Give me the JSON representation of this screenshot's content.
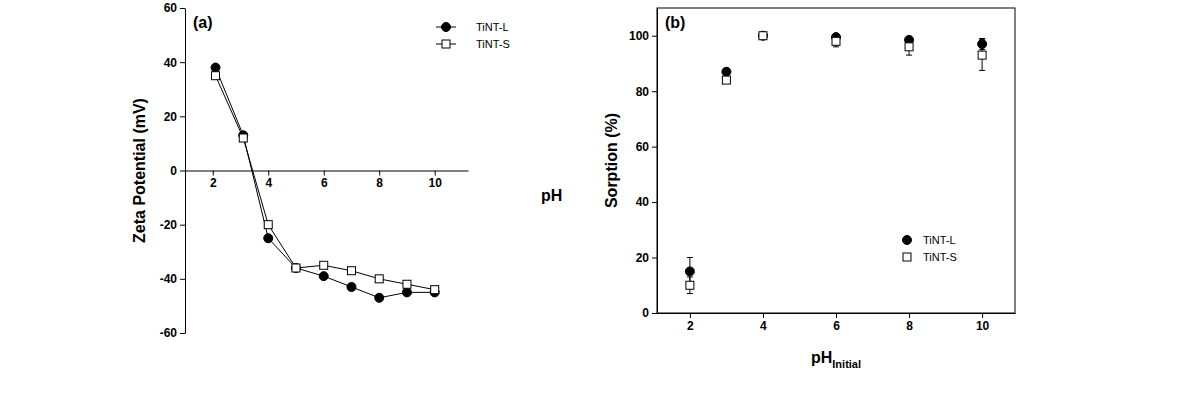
{
  "chart_data": [
    {
      "type": "line",
      "panel_label": "(a)",
      "ylabel": "Zeta Potential (mV)",
      "xlabel": "pH",
      "x": [
        2.1,
        3.1,
        4,
        5,
        6,
        7,
        8,
        9,
        10
      ],
      "xlim": [
        1,
        11.2
      ],
      "xticks": [
        2,
        4,
        6,
        8,
        10
      ],
      "ylim": [
        -60,
        60
      ],
      "yticks": [
        -60,
        -40,
        -20,
        0,
        20,
        40,
        60
      ],
      "grid": false,
      "legend": "upper right",
      "series": [
        {
          "name": "TiNT-L",
          "color": "#000000",
          "marker": "circle",
          "line_style": "solid",
          "values": [
            38,
            13,
            -25,
            -36,
            -39,
            -43,
            -47,
            -45,
            -45
          ]
        },
        {
          "name": "TiNT-S",
          "color": "#000000",
          "marker": "square-open",
          "line_style": "solid",
          "values": [
            35,
            12,
            -20,
            -36,
            -35,
            -37,
            -40,
            -42,
            -44
          ]
        }
      ]
    },
    {
      "type": "scatter",
      "panel_label": "(b)",
      "ylabel": "Sorption (%)",
      "xlabel": "pH",
      "xlabel_subscript": "Initial",
      "x": [
        2,
        3,
        4,
        6,
        8,
        10
      ],
      "xlim": [
        1.1,
        10.9
      ],
      "xticks": [
        2,
        4,
        6,
        8,
        10
      ],
      "ylim": [
        0,
        110
      ],
      "yticks": [
        0,
        20,
        40,
        60,
        80,
        100
      ],
      "grid": false,
      "legend": "lower right",
      "series": [
        {
          "name": "TiNT-L",
          "color": "#000000",
          "marker": "circle",
          "values": [
            15,
            87,
            100,
            99.5,
            98.5,
            97
          ],
          "errors": [
            5,
            1,
            0.8,
            1,
            1,
            2
          ]
        },
        {
          "name": "TiNT-S",
          "color": "#000000",
          "marker": "square-open",
          "values": [
            10,
            84,
            100,
            98,
            96,
            93
          ],
          "errors": [
            3,
            1,
            1,
            2,
            3,
            5.5
          ]
        }
      ]
    }
  ]
}
